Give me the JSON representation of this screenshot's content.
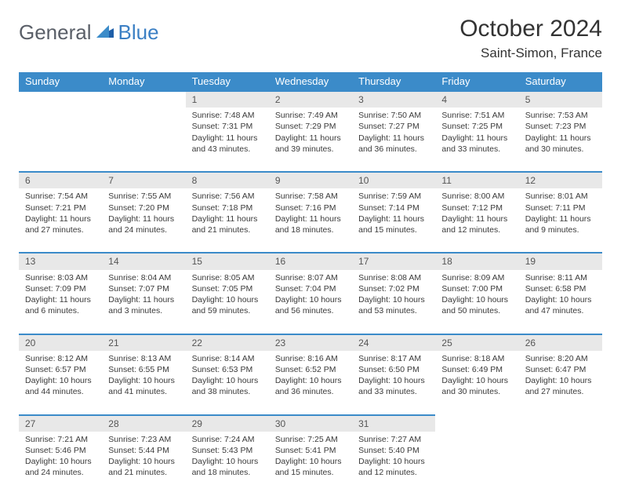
{
  "brand": {
    "part1": "General",
    "part2": "Blue"
  },
  "title": "October 2024",
  "location": "Saint-Simon, France",
  "colors": {
    "header_bg": "#3b8bc9",
    "header_text": "#ffffff",
    "daynum_bg": "#e8e8e8",
    "border": "#3b8bc9",
    "text": "#333333"
  },
  "weekdays": [
    "Sunday",
    "Monday",
    "Tuesday",
    "Wednesday",
    "Thursday",
    "Friday",
    "Saturday"
  ],
  "weeks": [
    [
      null,
      null,
      {
        "n": "1",
        "sunrise": "Sunrise: 7:48 AM",
        "sunset": "Sunset: 7:31 PM",
        "daylight": "Daylight: 11 hours and 43 minutes."
      },
      {
        "n": "2",
        "sunrise": "Sunrise: 7:49 AM",
        "sunset": "Sunset: 7:29 PM",
        "daylight": "Daylight: 11 hours and 39 minutes."
      },
      {
        "n": "3",
        "sunrise": "Sunrise: 7:50 AM",
        "sunset": "Sunset: 7:27 PM",
        "daylight": "Daylight: 11 hours and 36 minutes."
      },
      {
        "n": "4",
        "sunrise": "Sunrise: 7:51 AM",
        "sunset": "Sunset: 7:25 PM",
        "daylight": "Daylight: 11 hours and 33 minutes."
      },
      {
        "n": "5",
        "sunrise": "Sunrise: 7:53 AM",
        "sunset": "Sunset: 7:23 PM",
        "daylight": "Daylight: 11 hours and 30 minutes."
      }
    ],
    [
      {
        "n": "6",
        "sunrise": "Sunrise: 7:54 AM",
        "sunset": "Sunset: 7:21 PM",
        "daylight": "Daylight: 11 hours and 27 minutes."
      },
      {
        "n": "7",
        "sunrise": "Sunrise: 7:55 AM",
        "sunset": "Sunset: 7:20 PM",
        "daylight": "Daylight: 11 hours and 24 minutes."
      },
      {
        "n": "8",
        "sunrise": "Sunrise: 7:56 AM",
        "sunset": "Sunset: 7:18 PM",
        "daylight": "Daylight: 11 hours and 21 minutes."
      },
      {
        "n": "9",
        "sunrise": "Sunrise: 7:58 AM",
        "sunset": "Sunset: 7:16 PM",
        "daylight": "Daylight: 11 hours and 18 minutes."
      },
      {
        "n": "10",
        "sunrise": "Sunrise: 7:59 AM",
        "sunset": "Sunset: 7:14 PM",
        "daylight": "Daylight: 11 hours and 15 minutes."
      },
      {
        "n": "11",
        "sunrise": "Sunrise: 8:00 AM",
        "sunset": "Sunset: 7:12 PM",
        "daylight": "Daylight: 11 hours and 12 minutes."
      },
      {
        "n": "12",
        "sunrise": "Sunrise: 8:01 AM",
        "sunset": "Sunset: 7:11 PM",
        "daylight": "Daylight: 11 hours and 9 minutes."
      }
    ],
    [
      {
        "n": "13",
        "sunrise": "Sunrise: 8:03 AM",
        "sunset": "Sunset: 7:09 PM",
        "daylight": "Daylight: 11 hours and 6 minutes."
      },
      {
        "n": "14",
        "sunrise": "Sunrise: 8:04 AM",
        "sunset": "Sunset: 7:07 PM",
        "daylight": "Daylight: 11 hours and 3 minutes."
      },
      {
        "n": "15",
        "sunrise": "Sunrise: 8:05 AM",
        "sunset": "Sunset: 7:05 PM",
        "daylight": "Daylight: 10 hours and 59 minutes."
      },
      {
        "n": "16",
        "sunrise": "Sunrise: 8:07 AM",
        "sunset": "Sunset: 7:04 PM",
        "daylight": "Daylight: 10 hours and 56 minutes."
      },
      {
        "n": "17",
        "sunrise": "Sunrise: 8:08 AM",
        "sunset": "Sunset: 7:02 PM",
        "daylight": "Daylight: 10 hours and 53 minutes."
      },
      {
        "n": "18",
        "sunrise": "Sunrise: 8:09 AM",
        "sunset": "Sunset: 7:00 PM",
        "daylight": "Daylight: 10 hours and 50 minutes."
      },
      {
        "n": "19",
        "sunrise": "Sunrise: 8:11 AM",
        "sunset": "Sunset: 6:58 PM",
        "daylight": "Daylight: 10 hours and 47 minutes."
      }
    ],
    [
      {
        "n": "20",
        "sunrise": "Sunrise: 8:12 AM",
        "sunset": "Sunset: 6:57 PM",
        "daylight": "Daylight: 10 hours and 44 minutes."
      },
      {
        "n": "21",
        "sunrise": "Sunrise: 8:13 AM",
        "sunset": "Sunset: 6:55 PM",
        "daylight": "Daylight: 10 hours and 41 minutes."
      },
      {
        "n": "22",
        "sunrise": "Sunrise: 8:14 AM",
        "sunset": "Sunset: 6:53 PM",
        "daylight": "Daylight: 10 hours and 38 minutes."
      },
      {
        "n": "23",
        "sunrise": "Sunrise: 8:16 AM",
        "sunset": "Sunset: 6:52 PM",
        "daylight": "Daylight: 10 hours and 36 minutes."
      },
      {
        "n": "24",
        "sunrise": "Sunrise: 8:17 AM",
        "sunset": "Sunset: 6:50 PM",
        "daylight": "Daylight: 10 hours and 33 minutes."
      },
      {
        "n": "25",
        "sunrise": "Sunrise: 8:18 AM",
        "sunset": "Sunset: 6:49 PM",
        "daylight": "Daylight: 10 hours and 30 minutes."
      },
      {
        "n": "26",
        "sunrise": "Sunrise: 8:20 AM",
        "sunset": "Sunset: 6:47 PM",
        "daylight": "Daylight: 10 hours and 27 minutes."
      }
    ],
    [
      {
        "n": "27",
        "sunrise": "Sunrise: 7:21 AM",
        "sunset": "Sunset: 5:46 PM",
        "daylight": "Daylight: 10 hours and 24 minutes."
      },
      {
        "n": "28",
        "sunrise": "Sunrise: 7:23 AM",
        "sunset": "Sunset: 5:44 PM",
        "daylight": "Daylight: 10 hours and 21 minutes."
      },
      {
        "n": "29",
        "sunrise": "Sunrise: 7:24 AM",
        "sunset": "Sunset: 5:43 PM",
        "daylight": "Daylight: 10 hours and 18 minutes."
      },
      {
        "n": "30",
        "sunrise": "Sunrise: 7:25 AM",
        "sunset": "Sunset: 5:41 PM",
        "daylight": "Daylight: 10 hours and 15 minutes."
      },
      {
        "n": "31",
        "sunrise": "Sunrise: 7:27 AM",
        "sunset": "Sunset: 5:40 PM",
        "daylight": "Daylight: 10 hours and 12 minutes."
      },
      null,
      null
    ]
  ]
}
